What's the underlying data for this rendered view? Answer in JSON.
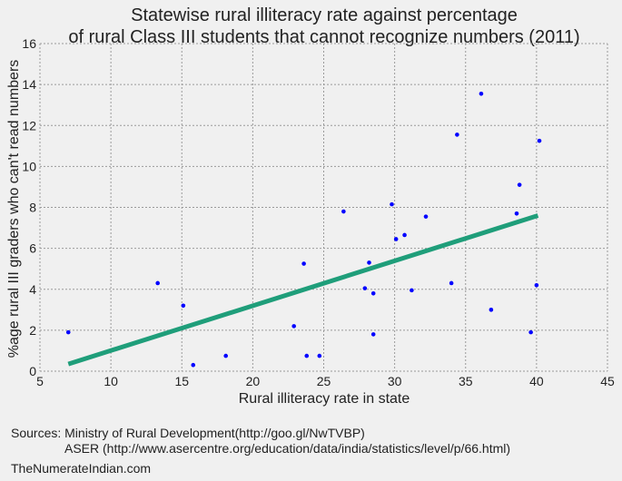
{
  "chart_data": {
    "type": "scatter",
    "title": [
      "Statewise rural illiteracy rate against percentage",
      "of rural Class III students that cannot recognize numbers (2011)"
    ],
    "xlabel": "Rural illiteracy rate in state",
    "ylabel": "%age rural III graders who can't read numbers",
    "xlim": [
      5,
      45
    ],
    "ylim": [
      0,
      16
    ],
    "x_ticks": [
      "5",
      "10",
      "15",
      "20",
      "25",
      "30",
      "35",
      "40",
      "45"
    ],
    "y_ticks": [
      "0",
      "2",
      "4",
      "6",
      "8",
      "10",
      "12",
      "14",
      "16"
    ],
    "grid": true,
    "point_color": "#0000ff",
    "trend_color": "#1f9e7a",
    "points": [
      {
        "x": 7.0,
        "y": 1.9
      },
      {
        "x": 13.3,
        "y": 4.3
      },
      {
        "x": 15.1,
        "y": 3.2
      },
      {
        "x": 15.8,
        "y": 0.3
      },
      {
        "x": 18.1,
        "y": 0.75
      },
      {
        "x": 22.9,
        "y": 2.2
      },
      {
        "x": 23.6,
        "y": 5.25
      },
      {
        "x": 23.8,
        "y": 0.75
      },
      {
        "x": 24.7,
        "y": 0.75
      },
      {
        "x": 26.4,
        "y": 7.8
      },
      {
        "x": 27.9,
        "y": 4.05
      },
      {
        "x": 28.2,
        "y": 5.3
      },
      {
        "x": 28.5,
        "y": 3.8
      },
      {
        "x": 28.5,
        "y": 1.8
      },
      {
        "x": 29.8,
        "y": 8.15
      },
      {
        "x": 30.1,
        "y": 6.45
      },
      {
        "x": 30.7,
        "y": 6.65
      },
      {
        "x": 31.2,
        "y": 3.95
      },
      {
        "x": 32.2,
        "y": 7.55
      },
      {
        "x": 34.0,
        "y": 4.3
      },
      {
        "x": 34.4,
        "y": 11.55
      },
      {
        "x": 36.1,
        "y": 13.55
      },
      {
        "x": 36.8,
        "y": 3.0
      },
      {
        "x": 38.6,
        "y": 7.7
      },
      {
        "x": 38.8,
        "y": 9.1
      },
      {
        "x": 39.6,
        "y": 1.9
      },
      {
        "x": 40.0,
        "y": 4.2
      },
      {
        "x": 40.2,
        "y": 11.25
      }
    ],
    "trendline": [
      {
        "x": 7.0,
        "y": 0.35
      },
      {
        "x": 40.1,
        "y": 7.6
      }
    ]
  },
  "sources": {
    "line1": "Sources: Ministry of Rural Development(http://goo.gl/NwTVBP)",
    "line2": "ASER (http://www.asercentre.org/education/data/india/statistics/level/p/66.html)"
  },
  "credit": "TheNumerateIndian.com"
}
